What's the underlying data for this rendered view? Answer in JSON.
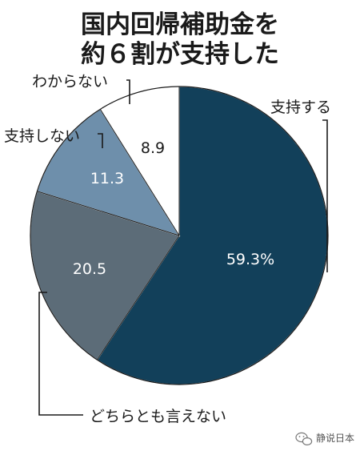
{
  "chart_data": {
    "type": "pie",
    "title_lines": [
      "国内回帰補助金を",
      "約６割が支持した"
    ],
    "categories": [
      "支持する",
      "どちらとも言えない",
      "支持しない",
      "わからない"
    ],
    "values": [
      59.3,
      20.5,
      11.3,
      8.9
    ],
    "value_labels": [
      "59.3%",
      "20.5",
      "11.3",
      "8.9"
    ],
    "colors": [
      "#12405a",
      "#5c6c78",
      "#6e8fab",
      "#ffffff"
    ],
    "value_label_colors": [
      "#ffffff",
      "#ffffff",
      "#ffffff",
      "#1a1a1a"
    ],
    "start_angle_deg": 0,
    "direction": "clockwise",
    "legend": "none"
  },
  "watermark": {
    "text": "静说日本",
    "icon": "wechat-icon"
  }
}
